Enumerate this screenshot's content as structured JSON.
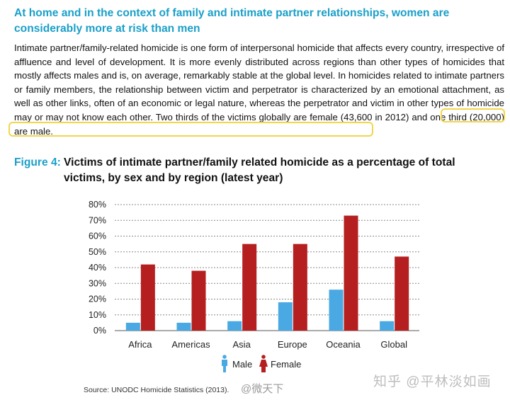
{
  "heading": "At home and in the context of family and intimate partner relationships, women are considerably more at risk than men",
  "body_paragraph": "Intimate partner/family-related homicide is one form of interpersonal homicide that affects every country, irrespective of affluence and level of development. It is more evenly distributed across regions than other types of homicides that mostly affects males and is, on average, remarkably stable at the global level. In homicides related to intimate partners or family members, the relationship between victim and perpetrator is characterized by an emotional attachment, as well as other links, often of an economic or legal nature, whereas the perpetrator and victim in other types of homicide may or may not know each other. Two thirds of the victims globally are female (43,600 in 2012) and one third (20,000) are male.",
  "figure": {
    "label": "Figure 4:",
    "title": "Victims of intimate partner/family related homicide as a percentage of total victims, by sex and by region (latest year)"
  },
  "chart_data": {
    "type": "bar",
    "categories": [
      "Africa",
      "Americas",
      "Asia",
      "Europe",
      "Oceania",
      "Global"
    ],
    "series": [
      {
        "name": "Male",
        "values": [
          5,
          5,
          6,
          18,
          26,
          6
        ],
        "color": "#4aa9e2"
      },
      {
        "name": "Female",
        "values": [
          42,
          38,
          55,
          55,
          73,
          47
        ],
        "color": "#b51f1f"
      }
    ],
    "y_ticks": [
      "0%",
      "10%",
      "20%",
      "30%",
      "40%",
      "50%",
      "60%",
      "70%",
      "80%"
    ],
    "ylim": [
      0,
      80
    ],
    "grid": true,
    "grid_style": "dashed",
    "legend_placement": "bottom",
    "legend_icons": [
      "male-person-icon",
      "female-person-icon"
    ]
  },
  "source": "Source: UNODC Homicide Statistics (2013).",
  "watermarks": [
    "@微天下",
    "知乎 @平林淡如画"
  ],
  "colors": {
    "accent": "#1a9fc9",
    "highlight": "#f2d64b"
  }
}
